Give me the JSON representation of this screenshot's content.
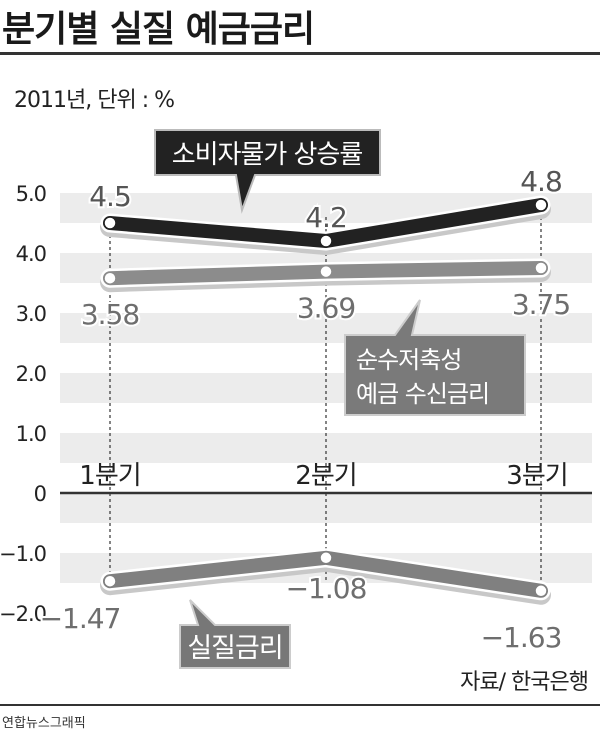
{
  "title": "분기별 실질 예금금리",
  "unit_label": "2011년, 단위 : %",
  "source": "자료/ 한국은행",
  "credit": "연합뉴스그래픽",
  "chart_data": {
    "type": "line",
    "title": "분기별 실질 예금금리",
    "categories": [
      "1분기",
      "2분기",
      "3분기"
    ],
    "yticks": [
      5.0,
      4.0,
      3.0,
      2.0,
      1.0,
      0,
      -1.0,
      -2.0
    ],
    "ytick_labels": [
      "5.0",
      "4.0",
      "3.0",
      "2.0",
      "1.0",
      "0",
      "−1.0",
      "−2.0"
    ],
    "ylim": [
      -2.3,
      5.5
    ],
    "grid": "alternating bands",
    "series": [
      {
        "name": "소비자물가 상승률",
        "legend_label": "소비자물가 상승률",
        "values": [
          4.5,
          4.2,
          4.8
        ],
        "labels": [
          "4.5",
          "4.2",
          "4.8"
        ],
        "color": "#222222"
      },
      {
        "name": "순수저축성 예금 수신금리",
        "legend_label": [
          "순수저축성",
          "예금 수신금리"
        ],
        "values": [
          3.58,
          3.69,
          3.75
        ],
        "labels": [
          "3.58",
          "3.69",
          "3.75"
        ],
        "color": "#8c8c8c"
      },
      {
        "name": "실질금리",
        "legend_label": "실질금리",
        "values": [
          -1.47,
          -1.08,
          -1.63
        ],
        "labels": [
          "−1.47",
          "−1.08",
          "−1.63"
        ],
        "color": "#808080"
      }
    ]
  }
}
